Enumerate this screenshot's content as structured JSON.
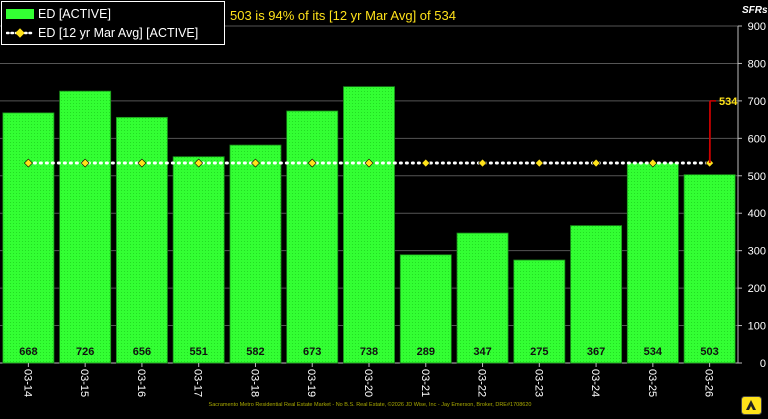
{
  "chart_data": {
    "type": "bar",
    "subtitle": "503 is 94% of its [12 yr Mar Avg] of 534",
    "unit_label": "SFRs",
    "categories": [
      "03-14",
      "03-15",
      "03-16",
      "03-17",
      "03-18",
      "03-19",
      "03-20",
      "03-21",
      "03-22",
      "03-23",
      "03-24",
      "03-25",
      "03-26"
    ],
    "series": [
      {
        "name": "ED [ACTIVE]",
        "type": "bar",
        "color": "#33ff33",
        "values": [
          668,
          726,
          656,
          551,
          582,
          673,
          738,
          289,
          347,
          275,
          367,
          534,
          503
        ]
      },
      {
        "name": "ED [12 yr Mar Avg] [ACTIVE]",
        "type": "line",
        "color": "#ffe21a",
        "values": [
          534,
          534,
          534,
          534,
          534,
          534,
          534,
          534,
          534,
          534,
          534,
          534,
          534
        ]
      }
    ],
    "annotation": {
      "label": "534",
      "color": "#ffe21a",
      "connector_color": "#cc0000"
    },
    "y_ticks": [
      "0",
      "100",
      "200",
      "300",
      "400",
      "500",
      "600",
      "700",
      "800",
      "900"
    ],
    "ylim": [
      0,
      900
    ],
    "y_axis_side": "right",
    "grid": true,
    "legend_position": "top-left"
  },
  "footer": "Sacramento Metro Residential Real Estate Market - No B.S. Real Estate, ©2026 JD Wise, Inc - Jay Emerson, Broker, DRE#1708620"
}
